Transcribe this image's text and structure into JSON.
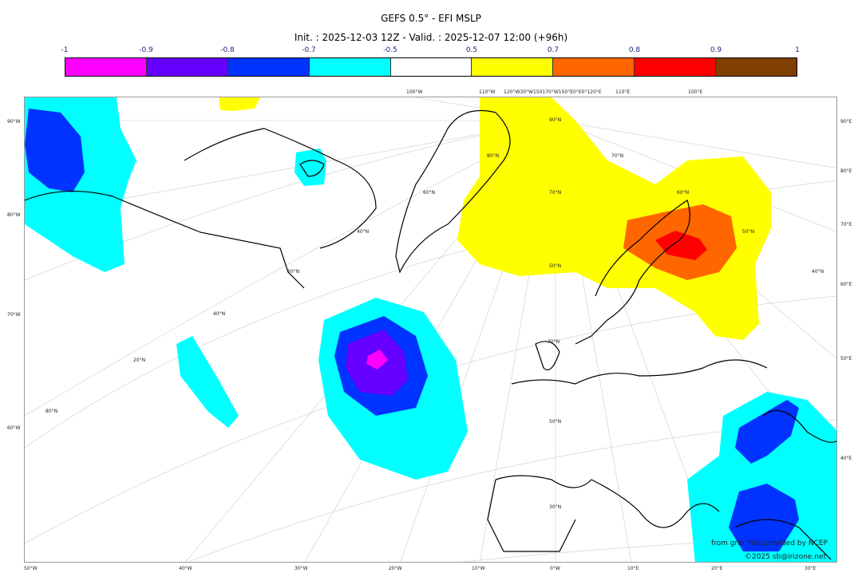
{
  "header": {
    "title": "GEFS 0.5° - EFI MSLP",
    "subtitle": "Init. : 2025-12-03 12Z - Valid. : 2025-12-07 12:00 (+96h)"
  },
  "colorbar": {
    "labels": [
      "-1",
      "-0.9",
      "-0.8",
      "-0.7",
      "-0.5",
      "0.5",
      "0.7",
      "0.8",
      "0.9",
      "1"
    ],
    "colors": [
      "#ff00ff",
      "#6600ff",
      "#0033ff",
      "#00ffff",
      "#ffffff",
      "#ffff00",
      "#ff6600",
      "#ff0000",
      "#7f3f00"
    ]
  },
  "axes": {
    "bottom": [
      "50°W",
      "40°W",
      "30°W",
      "20°W",
      "10°W",
      "0°W",
      "10°E",
      "20°E",
      "30°E"
    ],
    "left": [
      "90°W",
      "80°W",
      "70°W",
      "60°W"
    ],
    "right": [
      "90°E",
      "80°E",
      "70°E",
      "60°E",
      "50°E",
      "40°E"
    ],
    "top": [
      "100°W",
      "110°W",
      "120°W30°W150170°W150°E0°E0°120°E",
      "110°E",
      "100°E"
    ],
    "interior": [
      "90°N",
      "80°N",
      "70°N",
      "60°N",
      "50°N",
      "40°N",
      "70°N",
      "60°N",
      "50°N",
      "40°N",
      "30°N",
      "20°N",
      "80°N",
      "70°N",
      "60°N",
      "50°N",
      "40°N"
    ]
  },
  "credits": {
    "source": "from grib files provided by NCEP",
    "copyright": "©2025 sb@irizone.net"
  }
}
